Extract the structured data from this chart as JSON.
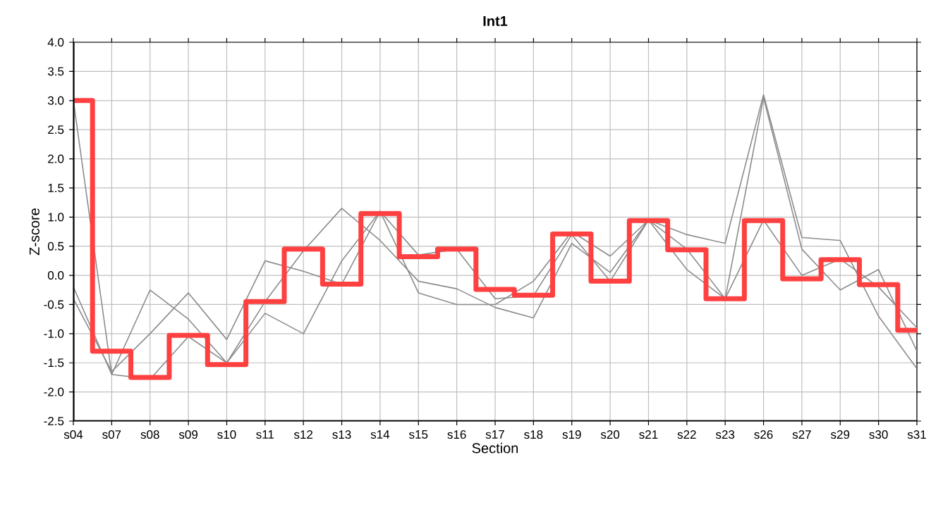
{
  "chart_data": {
    "type": "line",
    "title": "Int1",
    "xlabel": "Section",
    "ylabel": "Z-score",
    "categories": [
      "s04",
      "s07",
      "s08",
      "s09",
      "s10",
      "s11",
      "s12",
      "s13",
      "s14",
      "s15",
      "s16",
      "s17",
      "s18",
      "s19",
      "s20",
      "s21",
      "s22",
      "s23",
      "s26",
      "s27",
      "s29",
      "s30",
      "s31"
    ],
    "ylim": [
      -2.5,
      4.0
    ],
    "yticks": [
      {
        "value": -2.5,
        "label": "-2.5"
      },
      {
        "value": -2.0,
        "label": "-2.0"
      },
      {
        "value": -1.5,
        "label": "-1.5"
      },
      {
        "value": -1.0,
        "label": "-1.0"
      },
      {
        "value": -0.5,
        "label": "-0.5"
      },
      {
        "value": 0.0,
        "label": "0.0"
      },
      {
        "value": 0.5,
        "label": "0.5"
      },
      {
        "value": 1.0,
        "label": "1.0"
      },
      {
        "value": 1.5,
        "label": "1.5"
      },
      {
        "value": 2.0,
        "label": "2.0"
      },
      {
        "value": 2.5,
        "label": "2.5"
      },
      {
        "value": 3.0,
        "label": "3.0"
      },
      {
        "value": 3.5,
        "label": "3.5"
      },
      {
        "value": 4.0,
        "label": "4.0"
      }
    ],
    "grid": true,
    "marker": "none",
    "line_style": "solid",
    "series": [
      {
        "color": "#8c8c8c",
        "values": [
          3.0,
          -1.7,
          -1.78,
          -1.05,
          -1.5,
          -0.45,
          0.42,
          1.15,
          0.6,
          -0.1,
          -0.23,
          -0.55,
          -0.73,
          0.55,
          0.05,
          0.95,
          0.45,
          -0.4,
          0.95,
          0.0,
          0.28,
          -0.2,
          -0.9
        ]
      },
      {
        "color": "#8c8c8c",
        "values": [
          -0.2,
          -1.7,
          -0.25,
          -0.75,
          -1.5,
          -0.65,
          -1.0,
          0.25,
          1.1,
          0.35,
          0.45,
          -0.4,
          -0.35,
          0.7,
          -0.1,
          0.95,
          0.1,
          -0.4,
          3.05,
          0.45,
          -0.25,
          0.1,
          -1.3
        ]
      },
      {
        "color": "#8c8c8c",
        "values": [
          -0.4,
          -1.65,
          -1.0,
          -0.3,
          -1.1,
          0.25,
          0.07,
          -0.15,
          1.1,
          -0.3,
          -0.5,
          -0.5,
          -0.1,
          0.75,
          0.33,
          0.95,
          0.7,
          0.55,
          3.1,
          0.65,
          0.6,
          -0.7,
          -1.6
        ]
      },
      {
        "type": "step",
        "color": "#ff4040",
        "values": [
          3.0,
          -1.3,
          -1.75,
          -1.03,
          -1.53,
          -0.45,
          0.45,
          -0.15,
          1.06,
          0.32,
          0.45,
          -0.24,
          -0.34,
          0.71,
          -0.1,
          0.94,
          0.44,
          -0.4,
          0.94,
          -0.06,
          0.27,
          -0.16,
          -0.94
        ]
      }
    ]
  }
}
